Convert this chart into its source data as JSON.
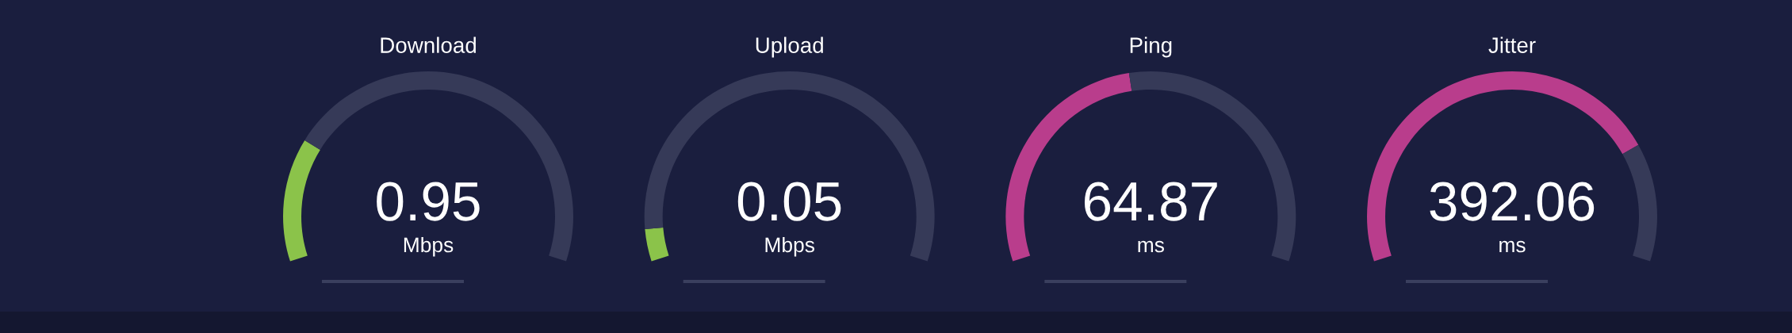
{
  "chart_data": [
    {
      "type": "donut",
      "title": "Download",
      "categories": [
        null,
        null
      ],
      "values": [
        23,
        77
      ],
      "colors": [
        "#8bc34a",
        "#363a58"
      ],
      "annotations": [
        "0.95",
        "Mbps"
      ]
    },
    {
      "type": "donut",
      "title": "Upload",
      "categories": [
        null,
        null
      ],
      "values": [
        6,
        94
      ],
      "colors": [
        "#8bc34a",
        "#363a58"
      ],
      "annotations": [
        "0.05",
        "Mbps"
      ]
    },
    {
      "type": "donut",
      "title": "Ping",
      "categories": [
        null,
        null
      ],
      "values": [
        46,
        54
      ],
      "colors": [
        "#b93d8c",
        "#363a58"
      ],
      "annotations": [
        "64.87",
        "ms"
      ]
    },
    {
      "type": "donut",
      "title": "Jitter",
      "categories": [
        null,
        null
      ],
      "values": [
        78,
        22
      ],
      "colors": [
        "#b93d8c",
        "#363a58"
      ],
      "annotations": [
        "392.06",
        "ms"
      ]
    }
  ]
}
